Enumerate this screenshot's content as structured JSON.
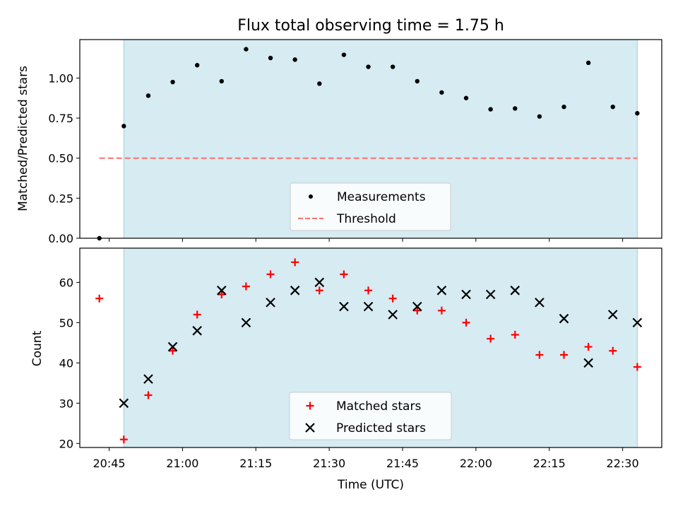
{
  "figure": {
    "title": "Flux total observing time = 1.75 h"
  },
  "colors": {
    "shade": "#add8e6",
    "threshold": "#ff7070",
    "measurement": "#000000",
    "matched": "#ff0000",
    "predicted": "#000000"
  },
  "chart_data": [
    {
      "type": "scatter",
      "panel": "top",
      "title": "Flux total observing time = 1.75 h",
      "xlabel": "",
      "ylabel": "Matched/Predicted stars",
      "ylim": [
        0,
        1.24
      ],
      "yticks": [
        0.0,
        0.25,
        0.5,
        0.75,
        1.0
      ],
      "ytick_labels": [
        "0.00",
        "0.25",
        "0.50",
        "0.75",
        "1.00"
      ],
      "legend": {
        "placement": "lower-center",
        "entries": [
          "Measurements",
          "Threshold"
        ]
      },
      "x": [
        "20:43",
        "20:48",
        "20:53",
        "20:58",
        "21:03",
        "21:08",
        "21:13",
        "21:18",
        "21:23",
        "21:28",
        "21:33",
        "21:38",
        "21:43",
        "21:48",
        "21:53",
        "21:58",
        "22:03",
        "22:08",
        "22:13",
        "22:18",
        "22:23",
        "22:28",
        "22:33"
      ],
      "series": [
        {
          "name": "Measurements",
          "values": [
            0.0,
            0.7,
            0.89,
            0.975,
            1.08,
            0.98,
            1.18,
            1.125,
            1.115,
            0.965,
            1.145,
            1.07,
            1.07,
            0.98,
            0.91,
            0.875,
            0.805,
            0.81,
            0.76,
            0.82,
            1.095,
            0.82,
            0.78
          ]
        },
        {
          "name": "Threshold",
          "values": [
            0.5,
            0.5
          ]
        }
      ],
      "shaded_span": [
        "20:48",
        "22:33"
      ]
    },
    {
      "type": "scatter",
      "panel": "bottom",
      "xlabel": "Time (UTC)",
      "ylabel": "Count",
      "ylim": [
        19,
        68.5
      ],
      "yticks": [
        20,
        30,
        40,
        50,
        60
      ],
      "xtick_labels": [
        "20:45",
        "21:00",
        "21:15",
        "21:30",
        "21:45",
        "22:00",
        "22:15",
        "22:30"
      ],
      "legend": {
        "placement": "lower-center",
        "entries": [
          "Matched stars",
          "Predicted stars"
        ]
      },
      "series": [
        {
          "name": "Matched stars",
          "x": [
            "20:43",
            "20:48",
            "20:53",
            "20:58",
            "21:03",
            "21:08",
            "21:13",
            "21:18",
            "21:23",
            "21:28",
            "21:33",
            "21:38",
            "21:43",
            "21:48",
            "21:53",
            "21:58",
            "22:03",
            "22:08",
            "22:13",
            "22:18",
            "22:23",
            "22:28",
            "22:33"
          ],
          "values": [
            56,
            21,
            32,
            43,
            52,
            57,
            59,
            62,
            65,
            58,
            62,
            58,
            56,
            53,
            53,
            50,
            46,
            47,
            42,
            42,
            44,
            43,
            39
          ]
        },
        {
          "name": "Predicted stars",
          "x": [
            "20:48",
            "20:53",
            "20:58",
            "21:03",
            "21:08",
            "21:13",
            "21:18",
            "21:23",
            "21:28",
            "21:33",
            "21:38",
            "21:43",
            "21:48",
            "21:53",
            "21:58",
            "22:03",
            "22:08",
            "22:13",
            "22:18",
            "22:23",
            "22:28",
            "22:33"
          ],
          "values": [
            30,
            36,
            44,
            48,
            58,
            50,
            55,
            58,
            60,
            54,
            54,
            52,
            54,
            58,
            57,
            57,
            58,
            55,
            51,
            40,
            52,
            50
          ]
        }
      ],
      "shaded_span": [
        "20:48",
        "22:33"
      ]
    }
  ]
}
